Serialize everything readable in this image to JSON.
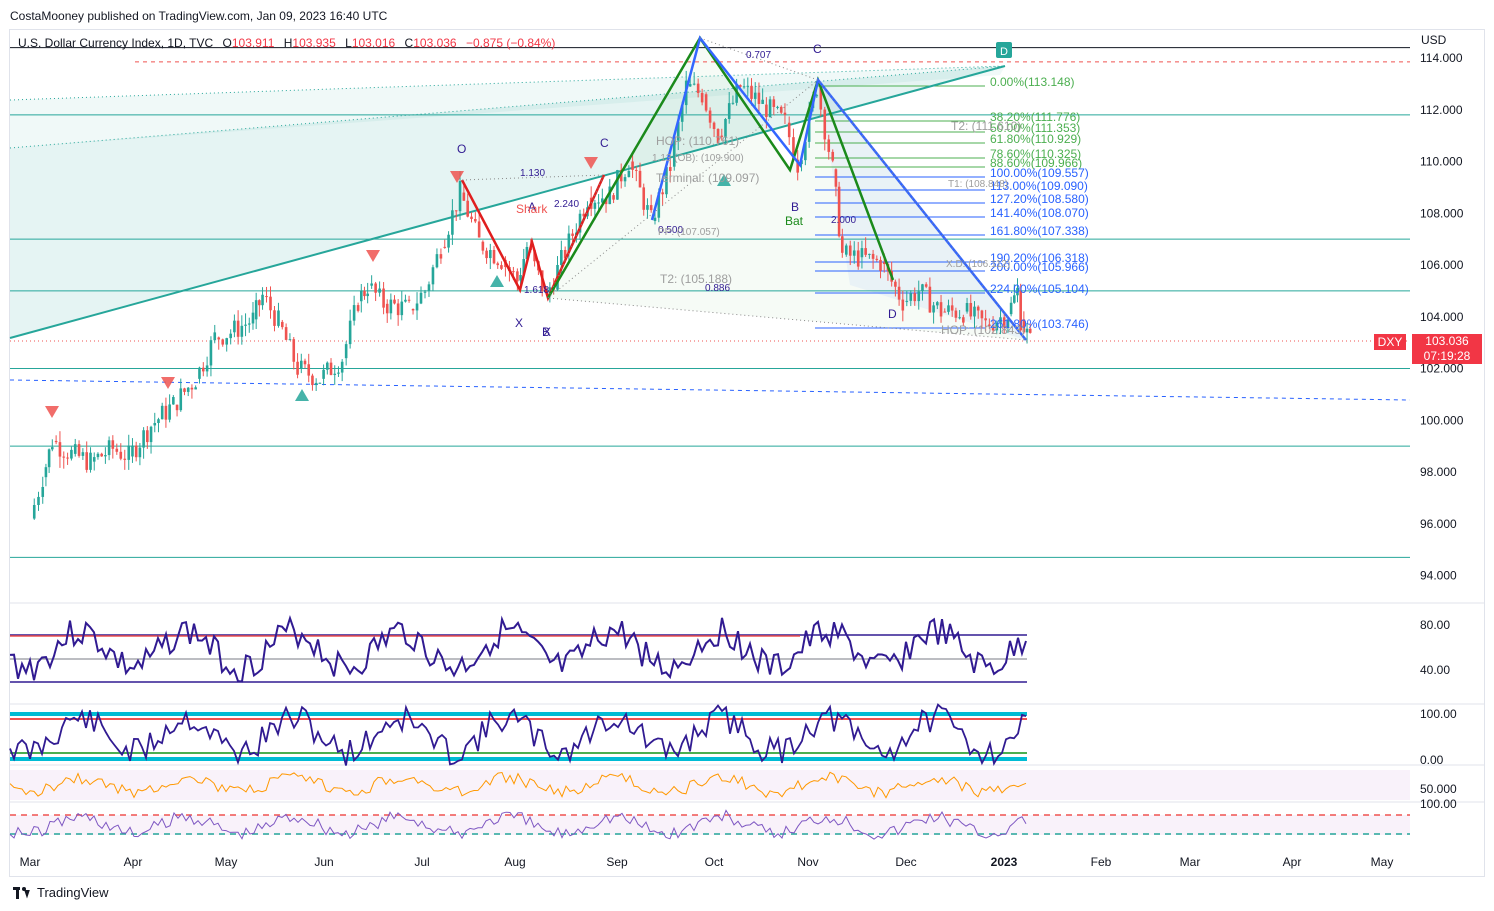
{
  "attribution": "CostaMooney published on TradingView.com, Jan 09, 2023 16:40 UTC",
  "symbol": {
    "name": "U.S. Dollar Currency Index, 1D, TVC",
    "o_key": "O",
    "o": "103.911",
    "h_key": "H",
    "h": "103.935",
    "l_key": "L",
    "l": "103.016",
    "c_key": "C",
    "c": "103.036",
    "change": "−0.875 (−0.84%)"
  },
  "currency": "USD",
  "last_price": {
    "ticker": "DXY",
    "price": "103.036",
    "countdown": "07:19:28"
  },
  "footer": {
    "brand": "TradingView"
  },
  "colors": {
    "up": "#26a69a",
    "down": "#ef5350",
    "fib_green": "#4caf50",
    "fib_blue": "#2962ff",
    "pattern_green": "#1b8a1b",
    "pattern_red": "#e01e1e",
    "pattern_blue": "#3366ff",
    "rsi": "#311b92",
    "teal": "#00bcd4"
  },
  "chart_data": {
    "type": "candlestick",
    "price_axis": {
      "ticks": [
        "114.000",
        "112.000",
        "110.000",
        "108.000",
        "106.000",
        "104.000",
        "102.000",
        "100.000",
        "98.000",
        "96.000",
        "94.000"
      ],
      "values": [
        114,
        112,
        110,
        108,
        106,
        104,
        102,
        100,
        98,
        96,
        94
      ],
      "ylim": [
        93.1,
        114.7
      ]
    },
    "time_axis": {
      "labels": [
        "Mar",
        "Apr",
        "May",
        "Jun",
        "Jul",
        "Aug",
        "Sep",
        "Oct",
        "Nov",
        "Dec",
        "2023",
        "Feb",
        "Mar",
        "Apr",
        "May"
      ]
    },
    "close_path": [
      [
        "2022-03-01",
        96.2
      ],
      [
        "2022-03-05",
        97.8
      ],
      [
        "2022-03-08",
        99.2
      ],
      [
        "2022-03-14",
        98.7
      ],
      [
        "2022-03-20",
        98.4
      ],
      [
        "2022-03-27",
        98.9
      ],
      [
        "2022-04-01",
        98.6
      ],
      [
        "2022-04-08",
        99.8
      ],
      [
        "2022-04-15",
        100.6
      ],
      [
        "2022-04-22",
        101.6
      ],
      [
        "2022-04-28",
        103.2
      ],
      [
        "2022-05-03",
        103.4
      ],
      [
        "2022-05-10",
        103.9
      ],
      [
        "2022-05-13",
        104.8
      ],
      [
        "2022-05-18",
        103.8
      ],
      [
        "2022-05-24",
        102.0
      ],
      [
        "2022-05-31",
        101.6
      ],
      [
        "2022-06-07",
        102.4
      ],
      [
        "2022-06-12",
        104.6
      ],
      [
        "2022-06-15",
        105.2
      ],
      [
        "2022-06-20",
        104.5
      ],
      [
        "2022-06-28",
        104.3
      ],
      [
        "2022-07-03",
        105.0
      ],
      [
        "2022-07-08",
        106.7
      ],
      [
        "2022-07-14",
        108.8
      ],
      [
        "2022-07-20",
        106.9
      ],
      [
        "2022-07-27",
        106.2
      ],
      [
        "2022-08-01",
        105.4
      ],
      [
        "2022-08-04",
        106.7
      ],
      [
        "2022-08-10",
        104.8
      ],
      [
        "2022-08-16",
        106.5
      ],
      [
        "2022-08-23",
        108.6
      ],
      [
        "2022-08-30",
        108.7
      ],
      [
        "2022-09-05",
        110.0
      ],
      [
        "2022-09-12",
        107.7
      ],
      [
        "2022-09-18",
        109.8
      ],
      [
        "2022-09-23",
        112.9
      ],
      [
        "2022-09-28",
        112.6
      ],
      [
        "2022-10-03",
        111.0
      ],
      [
        "2022-10-10",
        112.9
      ],
      [
        "2022-10-17",
        112.2
      ],
      [
        "2022-10-24",
        111.5
      ],
      [
        "2022-10-28",
        109.9
      ],
      [
        "2022-11-03",
        112.9
      ],
      [
        "2022-11-08",
        109.7
      ],
      [
        "2022-11-11",
        106.4
      ],
      [
        "2022-11-16",
        106.3
      ],
      [
        "2022-11-23",
        106.1
      ],
      [
        "2022-11-30",
        104.6
      ],
      [
        "2022-12-05",
        105.0
      ],
      [
        "2022-12-12",
        104.2
      ],
      [
        "2022-12-19",
        104.2
      ],
      [
        "2022-12-26",
        103.7
      ],
      [
        "2023-01-02",
        104.1
      ],
      [
        "2023-01-05",
        105.0
      ],
      [
        "2023-01-06",
        103.9
      ],
      [
        "2023-01-09",
        103.036
      ]
    ],
    "horizontal_levels": [
      114.4,
      113.85,
      111.8,
      107.0,
      105.0,
      102.0,
      99.0,
      94.7
    ],
    "fib_levels": [
      {
        "label": "0.00%(113.148)",
        "color": "#4caf50"
      },
      {
        "label": "38.20%(111.776)",
        "color": "#4caf50"
      },
      {
        "label": "50.00%(111.353)",
        "color": "#4caf50"
      },
      {
        "label": "61.80%(110.929)",
        "color": "#4caf50"
      },
      {
        "label": "78.60%(110.325)",
        "color": "#4caf50"
      },
      {
        "label": "88.60%(109.966)",
        "color": "#4caf50"
      },
      {
        "label": "100.00%(109.557)",
        "color": "#2962ff"
      },
      {
        "label": "113.00%(109.090)",
        "color": "#2962ff"
      },
      {
        "label": "127.20%(108.580)",
        "color": "#2962ff"
      },
      {
        "label": "141.40%(108.070)",
        "color": "#2962ff"
      },
      {
        "label": "161.80%(107.338)",
        "color": "#2962ff"
      },
      {
        "label": "190.20%(106.318)",
        "color": "#2962ff"
      },
      {
        "label": "200.00%(105.966)",
        "color": "#2962ff"
      },
      {
        "label": "224.00%(105.104)",
        "color": "#2962ff"
      },
      {
        "label": "261.80%(103.746)",
        "color": "#2962ff"
      }
    ],
    "pattern_labels": {
      "o": "O",
      "x1": "X",
      "a1": "A",
      "b1": "B",
      "c1": "C",
      "shark": "Shark",
      "x2": "X",
      "b2": "B",
      "c2": "C",
      "d2": "D",
      "bat": "Bat",
      "d_badge": "D"
    },
    "chart_notes": {
      "r1": "1.130",
      "r2": "2.240",
      "r3": "1.618",
      "r4": "0.707",
      "r5": "0.500",
      "r6": "0.886",
      "r7": "2.000",
      "hop1": "HOP: (110.761)",
      "ob": "1.13 (OB): (109.900)",
      "terminal": "Terminal: (109.097)",
      "t2a": "T2: (105.188)",
      "t2b": "T2: (111.610)",
      "t1": "T1: (108.848)",
      "pp": "PP: (107.057)",
      "xd": "X.D: (106.112)",
      "hop2": "HOP: (102.843)"
    },
    "indicators": [
      {
        "name": "rsi",
        "ticks": [
          "80.00",
          "40.00"
        ]
      },
      {
        "name": "stochastic",
        "ticks": [
          "100.00",
          "0.00"
        ]
      },
      {
        "name": "oscillator_3",
        "ticks": [
          "50.000"
        ]
      },
      {
        "name": "oscillator_4",
        "ticks": [
          "100.00"
        ]
      }
    ]
  }
}
